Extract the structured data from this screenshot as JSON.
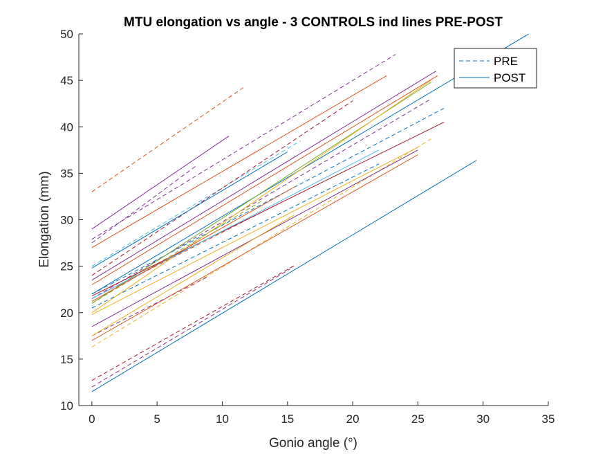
{
  "chart_data": {
    "type": "line",
    "title": "MTU elongation vs angle - 3 CONTROLS ind lines PRE-POST",
    "xlabel": "Gonio angle (°)",
    "ylabel": "Elongation (mm)",
    "xlim": [
      -1,
      35
    ],
    "ylim": [
      10,
      50
    ],
    "xticks": [
      "0",
      "5",
      "10",
      "15",
      "20",
      "25",
      "30",
      "35"
    ],
    "yticks": [
      "10",
      "15",
      "20",
      "25",
      "30",
      "35",
      "40",
      "45",
      "50"
    ],
    "xtick_values": [
      0,
      5,
      10,
      15,
      20,
      25,
      30,
      35
    ],
    "ytick_values": [
      10,
      15,
      20,
      25,
      30,
      35,
      40,
      45,
      50
    ],
    "grid": false,
    "legend": {
      "placement": "top-right",
      "entries": [
        {
          "label": "PRE",
          "style": "dashed",
          "color": "#0072BD"
        },
        {
          "label": "POST",
          "style": "solid",
          "color": "#0072BD"
        }
      ]
    },
    "colors": [
      "#0072BD",
      "#D95319",
      "#EDB120",
      "#7E2F8E",
      "#77AC30",
      "#4DBEEE",
      "#A2142F"
    ],
    "series": [
      {
        "style": "dashed",
        "color": "#D95319",
        "x": [
          0,
          11.7
        ],
        "y": [
          33.0,
          44.3
        ]
      },
      {
        "style": "dashed",
        "color": "#7E2F8E",
        "x": [
          0,
          23.3
        ],
        "y": [
          27.9,
          47.8
        ]
      },
      {
        "style": "dashed",
        "color": "#7E2F8E",
        "x": [
          0,
          8.0
        ],
        "y": [
          27.5,
          35.8
        ]
      },
      {
        "style": "dashed",
        "color": "#4DBEEE",
        "x": [
          0,
          16.0
        ],
        "y": [
          25.0,
          38.5
        ]
      },
      {
        "style": "dashed",
        "color": "#A2142F",
        "x": [
          0,
          20.0
        ],
        "y": [
          24.0,
          42.8
        ]
      },
      {
        "style": "dashed",
        "color": "#0072BD",
        "x": [
          0,
          27.0
        ],
        "y": [
          22.0,
          42.0
        ]
      },
      {
        "style": "dashed",
        "color": "#7E2F8E",
        "x": [
          0,
          26.0
        ],
        "y": [
          21.5,
          43.0
        ]
      },
      {
        "style": "dashed",
        "color": "#77AC30",
        "x": [
          0,
          13.0
        ],
        "y": [
          21.0,
          32.0
        ]
      },
      {
        "style": "dashed",
        "color": "#0072BD",
        "x": [
          0,
          22.0
        ],
        "y": [
          20.5,
          36.0
        ]
      },
      {
        "style": "dashed",
        "color": "#D95319",
        "x": [
          0,
          14.0
        ],
        "y": [
          21.5,
          31.5
        ]
      },
      {
        "style": "dashed",
        "color": "#EDB120",
        "x": [
          0,
          26.0
        ],
        "y": [
          16.3,
          38.7
        ]
      },
      {
        "style": "dashed",
        "color": "#7E2F8E",
        "x": [
          0,
          8.8
        ],
        "y": [
          17.5,
          23.8
        ]
      },
      {
        "style": "dashed",
        "color": "#A2142F",
        "x": [
          0,
          15.7
        ],
        "y": [
          12.7,
          25.2
        ]
      },
      {
        "style": "dashed",
        "color": "#7E2F8E",
        "x": [
          0,
          15.2
        ],
        "y": [
          12.0,
          24.7
        ]
      },
      {
        "style": "solid",
        "color": "#7E2F8E",
        "x": [
          0,
          10.5
        ],
        "y": [
          29.0,
          39.0
        ]
      },
      {
        "style": "solid",
        "color": "#D95319",
        "x": [
          0,
          22.6
        ],
        "y": [
          27.0,
          45.5
        ]
      },
      {
        "style": "solid",
        "color": "#7E2F8E",
        "x": [
          0,
          26.4
        ],
        "y": [
          23.5,
          46.0
        ]
      },
      {
        "style": "solid",
        "color": "#0072BD",
        "x": [
          0,
          15.0
        ],
        "y": [
          24.8,
          37.3
        ]
      },
      {
        "style": "solid",
        "color": "#0072BD",
        "x": [
          0,
          33.5
        ],
        "y": [
          22.0,
          50.0
        ]
      },
      {
        "style": "solid",
        "color": "#D95319",
        "x": [
          0,
          26.5
        ],
        "y": [
          23.0,
          45.5
        ]
      },
      {
        "style": "solid",
        "color": "#77AC30",
        "x": [
          0,
          26.0
        ],
        "y": [
          21.0,
          44.8
        ]
      },
      {
        "style": "solid",
        "color": "#EDB120",
        "x": [
          0,
          26.0
        ],
        "y": [
          20.0,
          45.0
        ]
      },
      {
        "style": "solid",
        "color": "#A2142F",
        "x": [
          0,
          27.0
        ],
        "y": [
          21.8,
          40.5
        ]
      },
      {
        "style": "solid",
        "color": "#4DBEEE",
        "x": [
          0,
          22.0
        ],
        "y": [
          21.5,
          37.5
        ]
      },
      {
        "style": "solid",
        "color": "#D95319",
        "x": [
          0,
          15.5
        ],
        "y": [
          21.2,
          33.5
        ]
      },
      {
        "style": "solid",
        "color": "#EDB120",
        "x": [
          0,
          25.0
        ],
        "y": [
          19.8,
          37.8
        ]
      },
      {
        "style": "solid",
        "color": "#7E2F8E",
        "x": [
          0,
          25.0
        ],
        "y": [
          18.5,
          37.5
        ]
      },
      {
        "style": "solid",
        "color": "#D95319",
        "x": [
          0,
          25.0
        ],
        "y": [
          17.0,
          37.0
        ]
      },
      {
        "style": "solid",
        "color": "#EDB120",
        "x": [
          0,
          15.5
        ],
        "y": [
          17.5,
          30.5
        ]
      },
      {
        "style": "solid",
        "color": "#0072BD",
        "x": [
          0,
          29.5
        ],
        "y": [
          11.5,
          36.4
        ]
      }
    ]
  }
}
